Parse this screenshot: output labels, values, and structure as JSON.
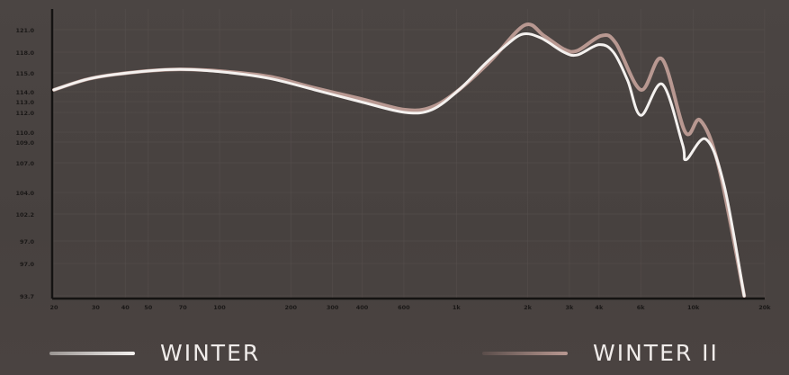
{
  "chart_data": {
    "type": "line",
    "title": "",
    "xlabel": "",
    "ylabel": "",
    "x_scale": "log",
    "xlim": [
      20,
      20000
    ],
    "grid": true,
    "legend_placement": "bottom",
    "x_ticks": [
      {
        "value": 20,
        "label": "20"
      },
      {
        "value": 30,
        "label": "30"
      },
      {
        "value": 40,
        "label": "40"
      },
      {
        "value": 50,
        "label": "50"
      },
      {
        "value": 70,
        "label": "70"
      },
      {
        "value": 100,
        "label": "100"
      },
      {
        "value": 200,
        "label": "200"
      },
      {
        "value": 300,
        "label": "300"
      },
      {
        "value": 400,
        "label": "400"
      },
      {
        "value": 600,
        "label": "600"
      },
      {
        "value": 1000,
        "label": "1k"
      },
      {
        "value": 2000,
        "label": "2k"
      },
      {
        "value": 3000,
        "label": "3k"
      },
      {
        "value": 4000,
        "label": "4k"
      },
      {
        "value": 6000,
        "label": "6k"
      },
      {
        "value": 10000,
        "label": "10k"
      },
      {
        "value": 20000,
        "label": "20k"
      }
    ],
    "y_tick_labels": [
      "121.0",
      "118.0",
      "115.0",
      "114.0",
      "113.0",
      "112.0",
      "110.0",
      "109.0",
      "107.0",
      "104.0",
      "102.2",
      "97.0",
      "97.0",
      "93.7"
    ],
    "series": [
      {
        "name": "WINTER",
        "color": "#f4f1ef",
        "points": [
          [
            20,
            114.1
          ],
          [
            28.5,
            114.7
          ],
          [
            44,
            115.1
          ],
          [
            68,
            115.5
          ],
          [
            105,
            115.1
          ],
          [
            163,
            114.7
          ],
          [
            252,
            114.1
          ],
          [
            392,
            113.0
          ],
          [
            606,
            112.0
          ],
          [
            788,
            112.25
          ],
          [
            1025,
            114.1
          ],
          [
            1330,
            116.4
          ],
          [
            1590,
            118.7
          ],
          [
            1900,
            120.4
          ],
          [
            2270,
            119.9
          ],
          [
            2840,
            118.0
          ],
          [
            3240,
            117.6
          ],
          [
            4000,
            119.0
          ],
          [
            4600,
            118.0
          ],
          [
            5280,
            114.6
          ],
          [
            6010,
            111.7
          ],
          [
            7400,
            114.4
          ],
          [
            9000,
            108.8
          ],
          [
            9330,
            107.3
          ],
          [
            11300,
            109.3
          ],
          [
            13500,
            104.7
          ],
          [
            16400,
            93.7
          ]
        ]
      },
      {
        "name": "WINTER II",
        "color": "#b89891",
        "points": [
          [
            20,
            114.1
          ],
          [
            28.5,
            114.7
          ],
          [
            44,
            115.1
          ],
          [
            68,
            115.5
          ],
          [
            105,
            115.2
          ],
          [
            163,
            114.8
          ],
          [
            252,
            114.2
          ],
          [
            392,
            113.3
          ],
          [
            606,
            112.25
          ],
          [
            788,
            112.5
          ],
          [
            1025,
            114.1
          ],
          [
            1400,
            116.8
          ],
          [
            1940,
            121.6
          ],
          [
            2340,
            120.2
          ],
          [
            2840,
            118.4
          ],
          [
            3240,
            118.2
          ],
          [
            4100,
            120.2
          ],
          [
            4710,
            119.2
          ],
          [
            6010,
            114.1
          ],
          [
            7380,
            117.0
          ],
          [
            9250,
            110.0
          ],
          [
            10700,
            111.2
          ],
          [
            12800,
            106.6
          ],
          [
            16400,
            93.7
          ]
        ]
      }
    ]
  }
}
